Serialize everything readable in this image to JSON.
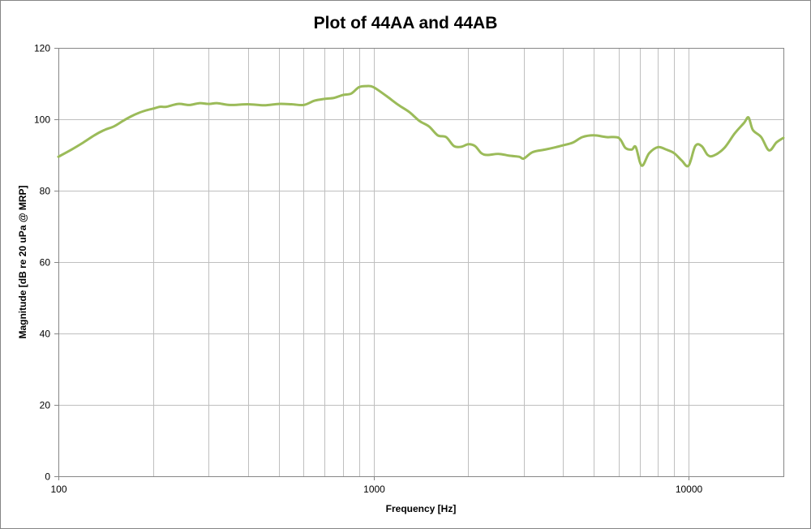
{
  "chart_data": {
    "type": "line",
    "title": "Plot of 44AA and 44AB",
    "xlabel": "Frequency [Hz]",
    "ylabel": "Magnitude [dB re 20 uPa @ MRP]",
    "x_scale": "log",
    "xlim": [
      100,
      20000
    ],
    "ylim": [
      0,
      120
    ],
    "x_ticks": [
      100,
      1000,
      10000
    ],
    "x_tick_labels": [
      "100",
      "1000",
      "10000"
    ],
    "y_ticks": [
      0,
      20,
      40,
      60,
      80,
      100,
      120
    ],
    "y_tick_labels": [
      "0",
      "20",
      "40",
      "60",
      "80",
      "100",
      "120"
    ],
    "grid": true,
    "legend": false,
    "colors": {
      "line": "#9BBB59",
      "grid": "#BFBFBF",
      "axis": "#868686"
    },
    "x": [
      100,
      110,
      120,
      130,
      140,
      150,
      160,
      170,
      180,
      190,
      200,
      210,
      220,
      240,
      260,
      280,
      300,
      320,
      350,
      400,
      450,
      500,
      550,
      600,
      650,
      700,
      750,
      800,
      850,
      900,
      950,
      1000,
      1100,
      1200,
      1300,
      1400,
      1500,
      1600,
      1700,
      1800,
      1900,
      2000,
      2100,
      2200,
      2300,
      2500,
      2700,
      2900,
      3000,
      3200,
      3500,
      3800,
      4000,
      4300,
      4600,
      5000,
      5500,
      6000,
      6300,
      6600,
      6800,
      7100,
      7500,
      8000,
      8500,
      9000,
      9500,
      10000,
      10500,
      11000,
      11500,
      12000,
      13000,
      14000,
      15000,
      15500,
      16000,
      17000,
      18000,
      19000,
      20000
    ],
    "series": [
      {
        "values": [
          89.5,
          91.5,
          93.5,
          95.5,
          97.0,
          98.0,
          99.5,
          100.8,
          101.8,
          102.5,
          103.0,
          103.5,
          103.5,
          104.3,
          104.0,
          104.5,
          104.3,
          104.5,
          104.0,
          104.2,
          103.9,
          104.3,
          104.2,
          104.0,
          105.2,
          105.7,
          106.0,
          106.8,
          107.2,
          109.0,
          109.3,
          109.0,
          106.5,
          104.0,
          102.0,
          99.5,
          98.0,
          95.5,
          95.0,
          92.5,
          92.3,
          93.0,
          92.5,
          90.5,
          90.0,
          90.3,
          89.8,
          89.5,
          89.0,
          90.8,
          91.5,
          92.2,
          92.7,
          93.5,
          95.0,
          95.5,
          95.0,
          94.8,
          92.0,
          91.5,
          92.2,
          87.0,
          90.5,
          92.2,
          91.5,
          90.5,
          88.5,
          87.0,
          92.5,
          92.5,
          90.0,
          89.8,
          92.0,
          96.0,
          99.0,
          100.5,
          97.0,
          95.0,
          91.3,
          93.5,
          94.8
        ]
      }
    ]
  }
}
